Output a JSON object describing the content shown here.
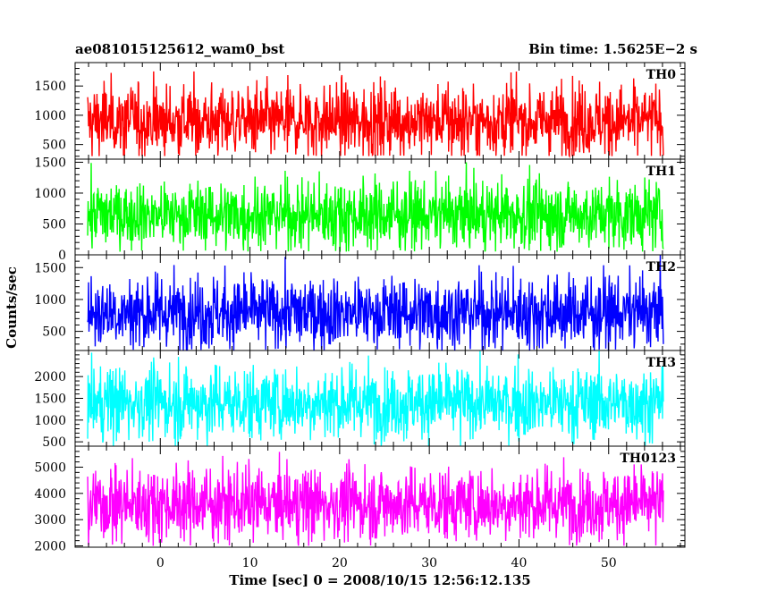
{
  "header": {
    "left_title": "ae081015125612_wam0_bst",
    "right_title": "Bin time: 1.5625E−2 s"
  },
  "chart_data": {
    "type": "line",
    "title": "ae081015125612_wam0_bst",
    "subtitle": "Bin time: 1.5625E−2 s",
    "xlabel": "Time [sec] 0 = 2008/10/15 12:56:12.135",
    "ylabel": "Counts/sec",
    "xlim": [
      -9.5,
      58.5
    ],
    "x_data_range": [
      -8.1,
      56.1
    ],
    "x_ticks": [
      0,
      10,
      20,
      30,
      40,
      50
    ],
    "bin_time_s": 0.015625,
    "grid": false,
    "panels": [
      {
        "name": "TH0",
        "color": "#ff0000",
        "ylim": [
          250,
          1900
        ],
        "y_ticks": [
          500,
          1000,
          1500
        ],
        "mean": 900,
        "min": 300,
        "max": 1900
      },
      {
        "name": "TH1",
        "color": "#00ff00",
        "ylim": [
          0,
          1550
        ],
        "y_ticks": [
          0,
          500,
          1000,
          1500
        ],
        "mean": 650,
        "min": 50,
        "max": 1500
      },
      {
        "name": "TH2",
        "color": "#0000ff",
        "ylim": [
          200,
          1700
        ],
        "y_ticks": [
          500,
          1000,
          1500
        ],
        "mean": 800,
        "min": 200,
        "max": 1700
      },
      {
        "name": "TH3",
        "color": "#00ffff",
        "ylim": [
          400,
          2600
        ],
        "y_ticks": [
          500,
          1000,
          1500,
          2000
        ],
        "mean": 1400,
        "min": 400,
        "max": 2600
      },
      {
        "name": "TH0123",
        "color": "#ff00ff",
        "ylim": [
          1950,
          5800
        ],
        "y_ticks": [
          2000,
          3000,
          4000,
          5000
        ],
        "mean": 3600,
        "min": 2000,
        "max": 5600
      }
    ]
  }
}
